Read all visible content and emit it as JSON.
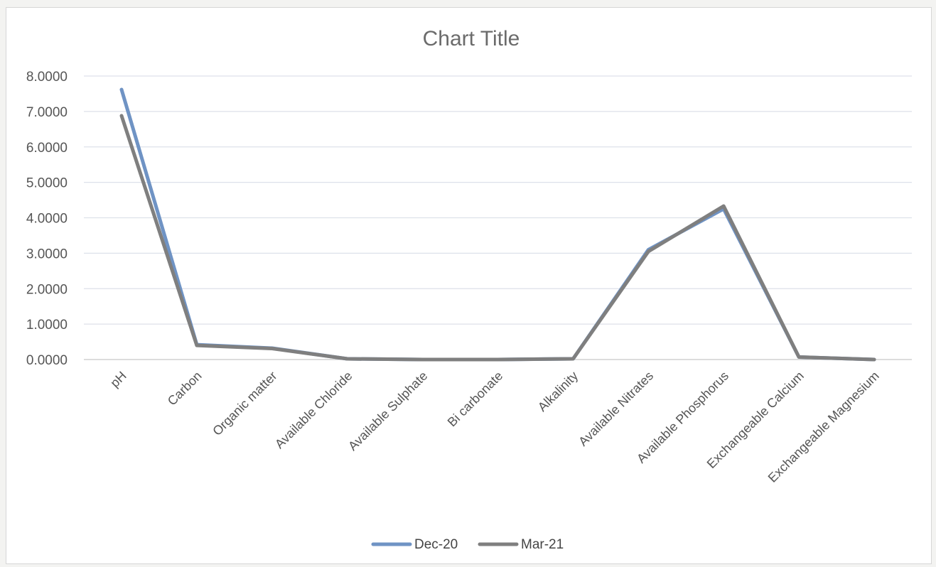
{
  "chart_data": {
    "type": "line",
    "title": "Chart Title",
    "xlabel": "",
    "ylabel": "",
    "ylim": [
      0,
      8
    ],
    "y_ticks": [
      "0.0000",
      "1.0000",
      "2.0000",
      "3.0000",
      "4.0000",
      "5.0000",
      "6.0000",
      "7.0000",
      "8.0000"
    ],
    "grid": true,
    "legend_position": "bottom",
    "categories": [
      "pH",
      "Carbon",
      "Organic matter",
      "Available Chloride",
      "Available Sulphate",
      "Bi carbonate",
      "Alkalinity",
      "Available Nitrates",
      "Available Phosphorus",
      "Exchangeable Calcium",
      "Exchangeable Magnesium"
    ],
    "series": [
      {
        "name": "Dec-20",
        "color": "#6f93c4",
        "values": [
          7.62,
          0.42,
          0.32,
          0.02,
          0.0,
          0.0,
          0.02,
          3.1,
          4.25,
          0.07,
          0.0
        ]
      },
      {
        "name": "Mar-21",
        "color": "#7f7f7f",
        "values": [
          6.88,
          0.4,
          0.31,
          0.02,
          0.0,
          0.0,
          0.02,
          3.05,
          4.33,
          0.07,
          0.0
        ]
      }
    ]
  }
}
